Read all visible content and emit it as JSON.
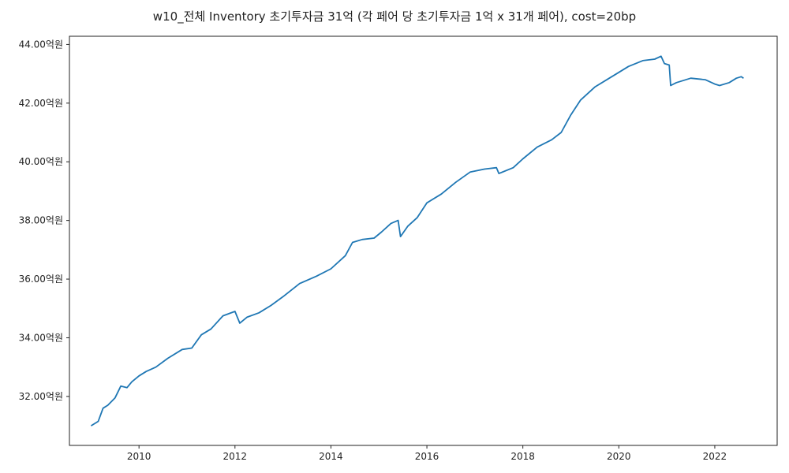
{
  "chart_data": {
    "type": "line",
    "title": "w10_전체 Inventory 초기투자금 31억 (각 페어 당 초기투자금 1억 x 31개 페어), cost=20bp",
    "xlabel": "",
    "ylabel": "",
    "xlim": [
      2008.55,
      2023.3
    ],
    "ylim": [
      30.33,
      44.28
    ],
    "x_ticks": [
      2010,
      2012,
      2014,
      2016,
      2018,
      2020,
      2022
    ],
    "x_tick_labels": [
      "2010",
      "2012",
      "2014",
      "2016",
      "2018",
      "2020",
      "2022"
    ],
    "y_ticks": [
      32,
      34,
      36,
      38,
      40,
      42,
      44
    ],
    "y_tick_labels": [
      "32.00억원",
      "34.00억원",
      "36.00억원",
      "38.00억원",
      "40.00억원",
      "42.00억원",
      "44.00억원"
    ],
    "grid": false,
    "line_color": "#1f77b4",
    "series": [
      {
        "x": [
          2009.0,
          2009.15,
          2009.25,
          2009.35,
          2009.5,
          2009.62,
          2009.75,
          2009.85,
          2010.0,
          2010.15,
          2010.35,
          2010.6,
          2010.9,
          2011.1,
          2011.3,
          2011.5,
          2011.75,
          2012.0,
          2012.1,
          2012.25,
          2012.5,
          2012.75,
          2013.0,
          2013.35,
          2013.7,
          2014.0,
          2014.3,
          2014.45,
          2014.65,
          2014.9,
          2015.05,
          2015.25,
          2015.4,
          2015.45,
          2015.6,
          2015.8,
          2016.0,
          2016.3,
          2016.6,
          2016.9,
          2017.2,
          2017.45,
          2017.5,
          2017.8,
          2018.0,
          2018.3,
          2018.6,
          2018.8,
          2019.0,
          2019.2,
          2019.5,
          2019.8,
          2020.0,
          2020.2,
          2020.5,
          2020.75,
          2020.88,
          2020.95,
          2021.05,
          2021.08,
          2021.2,
          2021.5,
          2021.8,
          2022.0,
          2022.1,
          2022.3,
          2022.45,
          2022.55,
          2022.6
        ],
        "y": [
          31.0,
          31.15,
          31.6,
          31.7,
          31.95,
          32.35,
          32.3,
          32.5,
          32.7,
          32.85,
          33.0,
          33.3,
          33.6,
          33.65,
          34.1,
          34.3,
          34.75,
          34.9,
          34.5,
          34.7,
          34.85,
          35.1,
          35.4,
          35.85,
          36.1,
          36.35,
          36.8,
          37.25,
          37.35,
          37.4,
          37.6,
          37.9,
          38.0,
          37.45,
          37.8,
          38.1,
          38.6,
          38.9,
          39.3,
          39.65,
          39.75,
          39.8,
          39.6,
          39.8,
          40.1,
          40.5,
          40.75,
          41.0,
          41.6,
          42.1,
          42.55,
          42.85,
          43.05,
          43.25,
          43.45,
          43.5,
          43.6,
          43.35,
          43.3,
          42.6,
          42.7,
          42.85,
          42.8,
          42.65,
          42.6,
          42.7,
          42.85,
          42.9,
          42.85
        ]
      }
    ]
  }
}
